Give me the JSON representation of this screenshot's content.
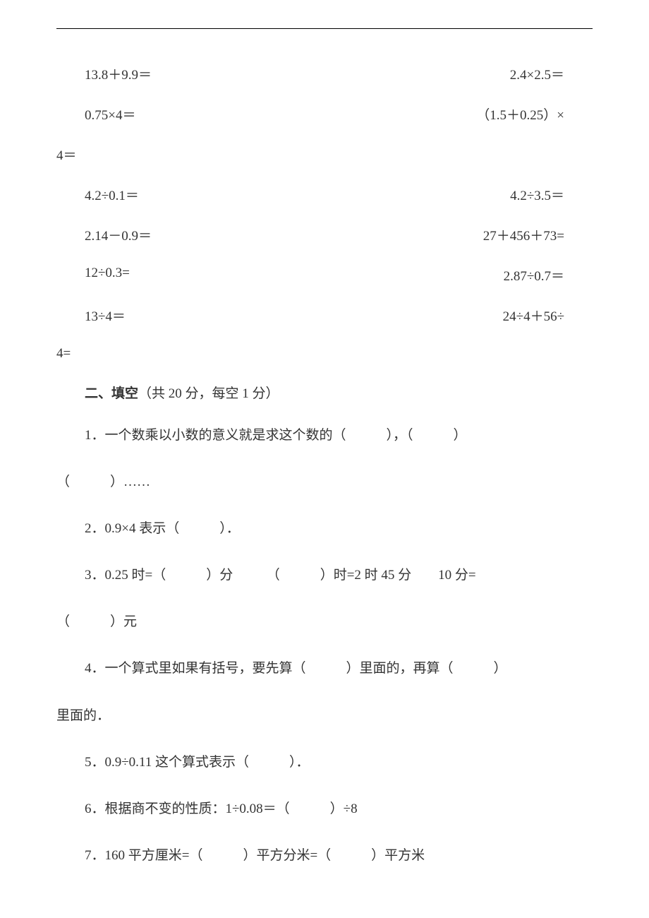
{
  "equations": [
    {
      "left": "13.8＋9.9＝",
      "right": "2.4×2.5＝"
    },
    {
      "left": "0.75×4＝",
      "right": "（1.5＋0.25）×"
    },
    {
      "carry": "4＝"
    },
    {
      "left": "4.2÷0.1＝",
      "right": "4.2÷3.5＝"
    },
    {
      "left": "2.14－0.9＝",
      "right": "27＋456＋73="
    },
    {
      "left": "12÷0.3=",
      "right": "2.87÷0.7＝"
    },
    {
      "left": "13÷4＝",
      "right": "24÷4＋56÷"
    },
    {
      "carry": "4="
    }
  ],
  "section2": {
    "title_bold": "二、填空",
    "title_rest": "（共 20 分，每空 1 分）"
  },
  "questions": {
    "q1_line1": "1．一个数乘以小数的意义就是求这个数的（　　　），（　　　）",
    "q1_line2": "（　　　）……",
    "q2": "2．0.9×4 表示（　　　）．",
    "q3_line1": "3．0.25 时=（　　　）分　　　（　　　）时=2 时 45 分　　10 分=",
    "q3_line2": "（　　　）元",
    "q4_line1": "4．一个算式里如果有括号，要先算（　　　）里面的，再算（　　　）",
    "q4_line2": "里面的．",
    "q5": "5．0.9÷0.11 这个算式表示（　　　）．",
    "q6": "6．根据商不变的性质：1÷0.08＝（　　　）÷8",
    "q7": "7．160 平方厘米=（　　　）平方分米=（　　　）平方米"
  }
}
